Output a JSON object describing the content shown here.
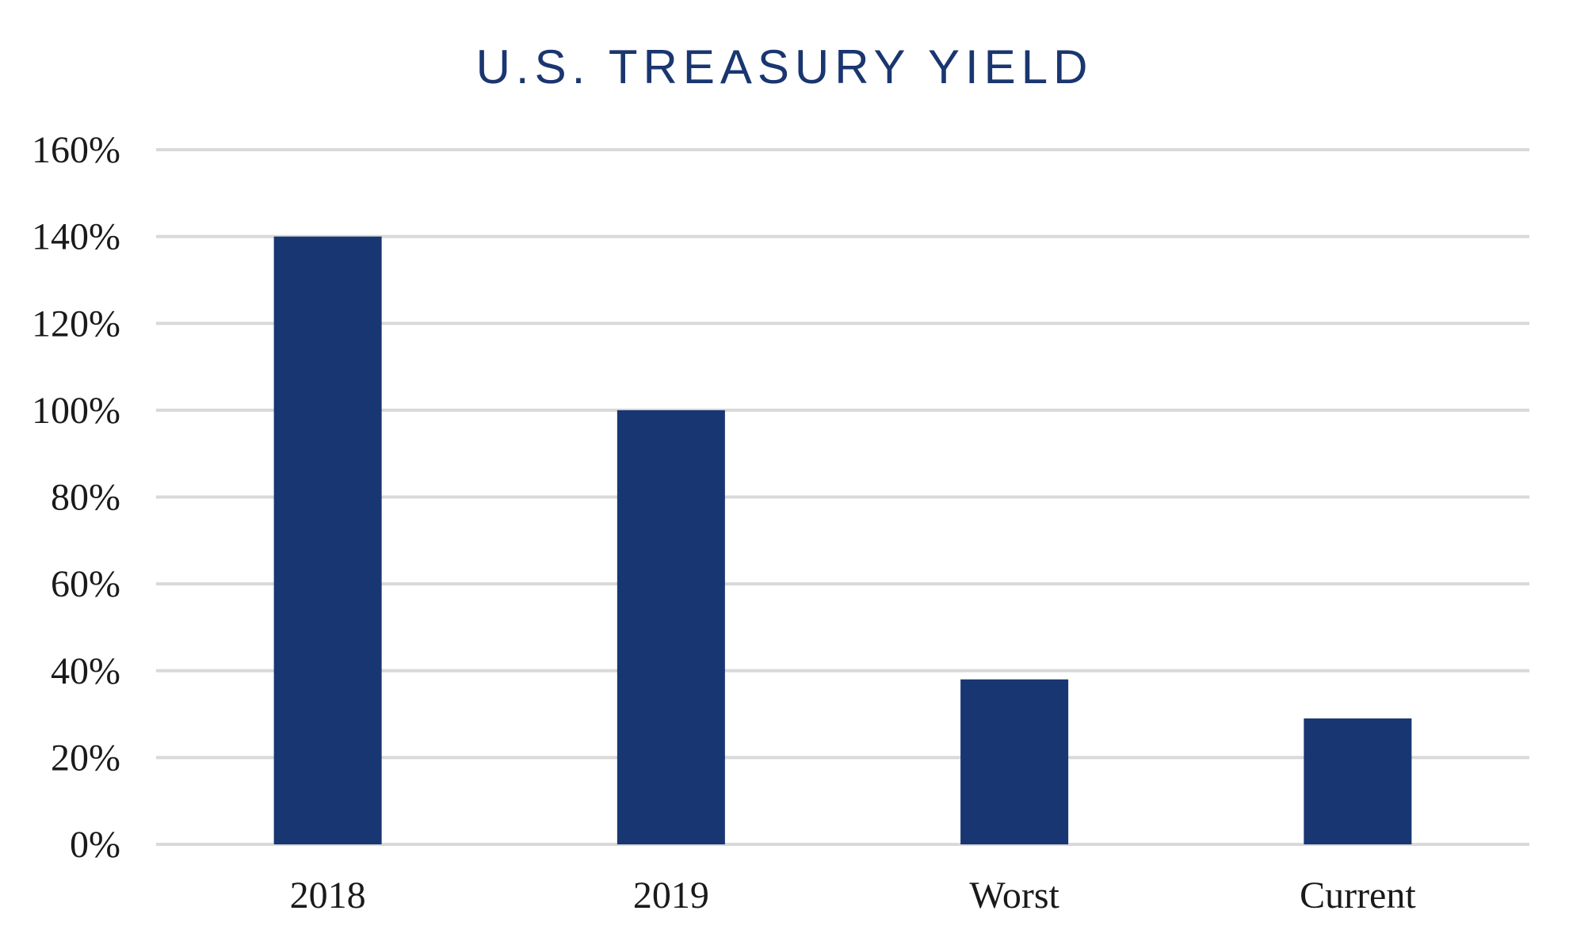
{
  "colors": {
    "title": "#1a3670",
    "bar": "#173672",
    "gridline": "#d9d9d9",
    "text": "#1a1a1a"
  },
  "chart_data": {
    "type": "bar",
    "title": "U.S. TREASURY YIELD",
    "xlabel": "",
    "ylabel": "",
    "categories": [
      "2018",
      "2019",
      "Worst",
      "Current"
    ],
    "values": [
      140,
      100,
      38,
      29
    ],
    "value_unit": "%",
    "ylim": [
      0,
      160
    ],
    "yticks": [
      0,
      20,
      40,
      60,
      80,
      100,
      120,
      140,
      160
    ],
    "ytick_labels": [
      "0%",
      "20%",
      "40%",
      "60%",
      "80%",
      "100%",
      "120%",
      "140%",
      "160%"
    ],
    "grid": true,
    "legend": "none"
  }
}
